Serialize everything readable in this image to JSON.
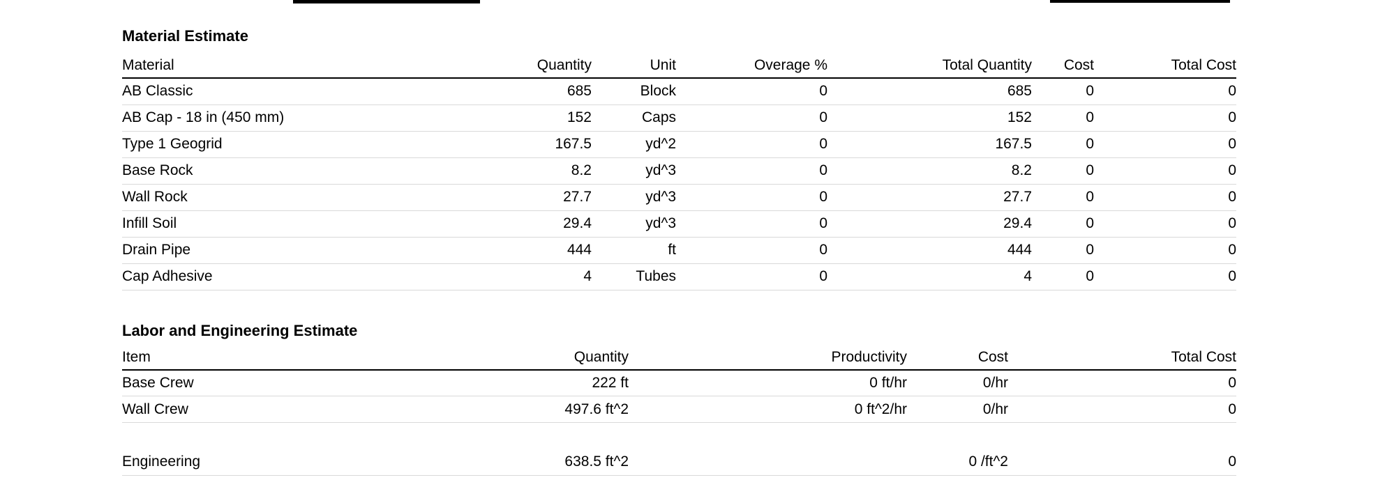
{
  "colors": {
    "background": "#ffffff",
    "text": "#000000",
    "header_divider": "#000000",
    "row_divider": "#d9d9d9"
  },
  "material_estimate": {
    "title": "Material Estimate",
    "columns": [
      "Material",
      "Quantity",
      "Unit",
      "Overage %",
      "Total Quantity",
      "Cost",
      "Total Cost"
    ],
    "rows": [
      [
        "AB Classic",
        "685",
        "Block",
        "0",
        "685",
        "0",
        "0"
      ],
      [
        "AB Cap - 18 in (450 mm)",
        "152",
        "Caps",
        "0",
        "152",
        "0",
        "0"
      ],
      [
        "Type 1 Geogrid",
        "167.5",
        "yd^2",
        "0",
        "167.5",
        "0",
        "0"
      ],
      [
        "Base Rock",
        "8.2",
        "yd^3",
        "0",
        "8.2",
        "0",
        "0"
      ],
      [
        "Wall Rock",
        "27.7",
        "yd^3",
        "0",
        "27.7",
        "0",
        "0"
      ],
      [
        "Infill Soil",
        "29.4",
        "yd^3",
        "0",
        "29.4",
        "0",
        "0"
      ],
      [
        "Drain Pipe",
        "444",
        "ft",
        "0",
        "444",
        "0",
        "0"
      ],
      [
        "Cap Adhesive",
        "4",
        "Tubes",
        "0",
        "4",
        "0",
        "0"
      ]
    ]
  },
  "labor_estimate": {
    "title": "Labor and Engineering Estimate",
    "columns": [
      "Item",
      "Quantity",
      "Productivity",
      "Cost",
      "Total Cost"
    ],
    "rows": [
      [
        "Base Crew",
        "222 ft",
        "0 ft/hr",
        "0/hr",
        "0"
      ],
      [
        "Wall Crew",
        "497.6 ft^2",
        "0 ft^2/hr",
        "0/hr",
        "0"
      ],
      [
        "",
        "",
        "",
        "",
        ""
      ],
      [
        "Engineering",
        "638.5 ft^2",
        "",
        "0 /ft^2",
        "0"
      ]
    ]
  }
}
